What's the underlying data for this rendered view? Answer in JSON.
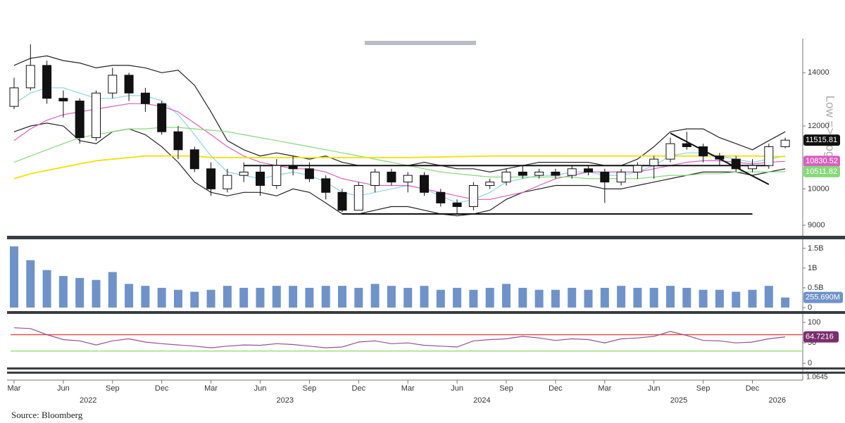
{
  "source": "Source: Bloomberg",
  "chart_data": [
    {
      "type": "candlestick",
      "log": true,
      "axis_note": "Low => Log",
      "x": [
        "2022-03",
        "2022-04",
        "2022-05",
        "2022-06",
        "2022-07",
        "2022-08",
        "2022-09",
        "2022-10",
        "2022-11",
        "2022-12",
        "2023-01",
        "2023-02",
        "2023-03",
        "2023-04",
        "2023-05",
        "2023-06",
        "2023-07",
        "2023-08",
        "2023-09",
        "2023-10",
        "2023-11",
        "2023-12",
        "2024-01",
        "2024-02",
        "2024-03",
        "2024-04",
        "2024-05",
        "2024-06",
        "2024-07",
        "2024-08",
        "2024-09",
        "2024-10",
        "2024-11",
        "2024-12",
        "2025-01",
        "2025-02",
        "2025-03",
        "2025-04",
        "2025-05",
        "2025-06",
        "2025-07",
        "2025-08",
        "2025-09",
        "2025-10",
        "2025-11",
        "2025-12",
        "2026-01",
        "2026-02"
      ],
      "open": [
        12700,
        13400,
        14300,
        13000,
        12900,
        11600,
        13200,
        13900,
        13200,
        12800,
        11800,
        11200,
        10600,
        10000,
        10400,
        10500,
        10100,
        10700,
        10600,
        10300,
        9900,
        9400,
        10100,
        10500,
        10200,
        10400,
        9900,
        9600,
        9500,
        10100,
        10200,
        10500,
        10400,
        10500,
        10400,
        10600,
        10500,
        10200,
        10500,
        10700,
        10900,
        11400,
        11300,
        11000,
        10900,
        10600,
        10700,
        11300
      ],
      "high": [
        13800,
        15200,
        14500,
        13300,
        13000,
        13300,
        14200,
        14000,
        13400,
        12900,
        12000,
        11300,
        10800,
        10600,
        10800,
        10700,
        10900,
        11000,
        10800,
        10400,
        10000,
        10200,
        10600,
        10600,
        10500,
        10500,
        10000,
        9700,
        10200,
        10300,
        10600,
        10700,
        10600,
        10600,
        10700,
        10700,
        10600,
        10600,
        10800,
        11000,
        11600,
        11800,
        11400,
        11100,
        11000,
        10900,
        11400,
        11600
      ],
      "low": [
        12600,
        13300,
        12800,
        12300,
        11400,
        11500,
        13000,
        12900,
        12500,
        11700,
        10900,
        10500,
        9800,
        9900,
        10200,
        9800,
        10000,
        10400,
        10200,
        9700,
        9350,
        9400,
        9900,
        10100,
        9900,
        9800,
        9500,
        9300,
        9400,
        10000,
        10100,
        10300,
        10300,
        10300,
        10300,
        10400,
        9600,
        10100,
        10300,
        10300,
        10800,
        11200,
        10800,
        10700,
        10500,
        10500,
        10600,
        11250
      ],
      "close": [
        13400,
        14300,
        13000,
        12900,
        11600,
        13200,
        13900,
        13200,
        12800,
        11800,
        11200,
        10600,
        10000,
        10400,
        10500,
        10100,
        10700,
        10600,
        10300,
        9900,
        9400,
        10100,
        10500,
        10200,
        10400,
        9900,
        9600,
        9500,
        10100,
        10200,
        10500,
        10400,
        10500,
        10400,
        10600,
        10500,
        10200,
        10500,
        10700,
        10900,
        11400,
        11300,
        11000,
        10900,
        10600,
        10700,
        11300,
        11515.81
      ],
      "up_color": "#ffffff",
      "down_color": "#111111",
      "overlays": [
        {
          "color": "#222222",
          "values": [
            14300,
            14600,
            14700,
            14500,
            14400,
            14200,
            14300,
            14300,
            14200,
            14000,
            14100,
            13500,
            12500,
            11500,
            11200,
            11000,
            11100,
            11000,
            10900,
            11000,
            10800,
            10700,
            10700,
            10700,
            10700,
            10800,
            10700,
            10600,
            10600,
            10500,
            10600,
            10700,
            10800,
            10800,
            10800,
            10800,
            10700,
            10700,
            10900,
            11300,
            11800,
            11900,
            11900,
            11600,
            11400,
            11200,
            11500,
            11800
          ]
        },
        {
          "color": "#222222",
          "values": [
            11800,
            12000,
            12100,
            12000,
            11500,
            11400,
            11800,
            11900,
            11700,
            11300,
            10800,
            10200,
            9900,
            9800,
            9900,
            9900,
            9800,
            10000,
            9900,
            9600,
            9300,
            9300,
            9400,
            9500,
            9500,
            9400,
            9300,
            9250,
            9300,
            9400,
            9700,
            9900,
            10000,
            10100,
            10100,
            10100,
            10000,
            10000,
            10100,
            10200,
            10300,
            10400,
            10500,
            10500,
            10500,
            10400,
            10500,
            10600
          ]
        },
        {
          "color": "#8fd3e8",
          "values": [
            12800,
            13200,
            13400,
            13400,
            13200,
            13000,
            13000,
            13100,
            13100,
            12900,
            12400,
            11700,
            11000,
            10500,
            10400,
            10300,
            10400,
            10500,
            10400,
            10200,
            9900,
            9800,
            9900,
            10000,
            10100,
            10000,
            9800,
            9600,
            9700,
            9900,
            10200,
            10300,
            10400,
            10400,
            10500,
            10500,
            10400,
            10400,
            10500,
            10700,
            11000,
            11100,
            11100,
            11000,
            10900,
            10800,
            10900,
            11000
          ]
        },
        {
          "color": "#d95fc1",
          "values": [
            11500,
            11900,
            12200,
            12400,
            12500,
            12600,
            12700,
            12800,
            12800,
            12700,
            12500,
            12100,
            11700,
            11300,
            11000,
            10800,
            10700,
            10600,
            10600,
            10500,
            10300,
            10200,
            10100,
            10100,
            10100,
            10000,
            9900,
            9800,
            9700,
            9700,
            9800,
            9900,
            10100,
            10300,
            10400,
            10500,
            10500,
            10500,
            10500,
            10600,
            10700,
            10800,
            10850,
            10850,
            10800,
            10750,
            10800,
            10830.52
          ],
          "tag": true
        },
        {
          "color": "#86d97a",
          "values": [
            10800,
            11000,
            11200,
            11400,
            11600,
            11700,
            11800,
            11900,
            11900,
            11950,
            11950,
            11900,
            11850,
            11800,
            11700,
            11600,
            11500,
            11400,
            11300,
            11200,
            11100,
            11000,
            10900,
            10800,
            10700,
            10600,
            10500,
            10450,
            10400,
            10350,
            10350,
            10350,
            10350,
            10350,
            10350,
            10300,
            10300,
            10300,
            10300,
            10350,
            10400,
            10400,
            10450,
            10450,
            10500,
            10500,
            10500,
            10511.82
          ],
          "tag": true
        },
        {
          "color": "#f2e21c",
          "values": [
            10300,
            10450,
            10550,
            10650,
            10750,
            10850,
            10900,
            10950,
            11000,
            11000,
            11000,
            11000,
            10950,
            10950,
            10950,
            10950,
            10950,
            10950,
            10950,
            10950,
            10950,
            10950,
            10950,
            10950,
            10950,
            10960,
            10970,
            10980,
            10990,
            11000,
            11000,
            11000,
            11000,
            11000,
            11000,
            11000,
            11000,
            11000,
            11000,
            11000,
            11000,
            11000,
            11000,
            11000,
            11000,
            11000,
            10990,
            10980
          ]
        }
      ],
      "trendlines": [
        {
          "start": "2023-05",
          "end": "2026-01",
          "values": [
            10700,
            10700
          ]
        },
        {
          "start": "2023-11",
          "end": "2025-12",
          "values": [
            9300,
            9300
          ]
        },
        {
          "start": "2025-07",
          "end": "2026-01",
          "values": [
            11750,
            10130
          ]
        }
      ],
      "ylim": [
        8730,
        15450
      ],
      "yticks": [
        9000,
        10000,
        12000,
        14000
      ],
      "xticks": [
        {
          "value": "2022-03",
          "label": "Mar"
        },
        {
          "value": "2022-06",
          "label": "Jun"
        },
        {
          "value": "2022-09",
          "label": "Sep"
        },
        {
          "value": "2022-12",
          "label": "Dec"
        },
        {
          "value": "2023-03",
          "label": "Mar"
        },
        {
          "value": "2023-06",
          "label": "Jun"
        },
        {
          "value": "2023-09",
          "label": "Sep"
        },
        {
          "value": "2023-12",
          "label": "Dec"
        },
        {
          "value": "2024-03",
          "label": "Mar"
        },
        {
          "value": "2024-06",
          "label": "Jun"
        },
        {
          "value": "2024-09",
          "label": "Sep"
        },
        {
          "value": "2024-12",
          "label": "Dec"
        },
        {
          "value": "2025-03",
          "label": "Mar"
        },
        {
          "value": "2025-06",
          "label": "Jun"
        },
        {
          "value": "2025-09",
          "label": "Sep"
        },
        {
          "value": "2025-12",
          "label": "Dec"
        }
      ],
      "year_ticks": [
        {
          "value": "2022-07",
          "label": "2022"
        },
        {
          "value": "2023-07",
          "label": "2023"
        },
        {
          "value": "2024-07",
          "label": "2024"
        },
        {
          "value": "2025-07",
          "label": "2025"
        },
        {
          "value": "2026-01",
          "label": "2026"
        }
      ]
    },
    {
      "type": "bar",
      "color": "#6f93c9",
      "values": [
        1.55,
        1.2,
        0.95,
        0.8,
        0.75,
        0.7,
        0.9,
        0.6,
        0.55,
        0.5,
        0.45,
        0.4,
        0.45,
        0.55,
        0.5,
        0.5,
        0.55,
        0.55,
        0.5,
        0.55,
        0.55,
        0.5,
        0.6,
        0.55,
        0.5,
        0.55,
        0.45,
        0.5,
        0.45,
        0.5,
        0.6,
        0.5,
        0.45,
        0.45,
        0.5,
        0.45,
        0.5,
        0.55,
        0.5,
        0.5,
        0.55,
        0.5,
        0.45,
        0.45,
        0.4,
        0.45,
        0.55,
        0.25569
      ],
      "value_labels": [
        null,
        null,
        null,
        null,
        null,
        null,
        null,
        null,
        null,
        null,
        null,
        null,
        null,
        null,
        null,
        null,
        null,
        null,
        null,
        null,
        null,
        null,
        null,
        null,
        null,
        null,
        null,
        null,
        null,
        null,
        null,
        null,
        null,
        null,
        null,
        null,
        null,
        null,
        null,
        null,
        null,
        null,
        null,
        null,
        null,
        null,
        null,
        "255.690M"
      ],
      "ylim": [
        0,
        1.64
      ],
      "yticks": [
        0,
        {
          "value": 0.5,
          "label": "0.5B"
        },
        {
          "value": 1,
          "label": "1B"
        },
        {
          "value": 1.5,
          "label": "1.5B"
        }
      ]
    },
    {
      "type": "line",
      "color": "#9a4f8f",
      "values": [
        87,
        85,
        70,
        58,
        55,
        45,
        55,
        60,
        52,
        48,
        45,
        42,
        38,
        42,
        45,
        44,
        48,
        46,
        42,
        38,
        40,
        52,
        55,
        48,
        50,
        44,
        42,
        40,
        55,
        58,
        60,
        66,
        62,
        56,
        60,
        58,
        50,
        60,
        62,
        66,
        78,
        68,
        56,
        55,
        50,
        52,
        60,
        64.7216
      ],
      "reference_lines": [
        {
          "value": 70,
          "color": "#d9534f"
        },
        {
          "value": 30,
          "color": "#9be07e"
        }
      ],
      "ylim": [
        -10,
        114
      ],
      "yticks": [
        0,
        50,
        100
      ],
      "extra_value": 1.0645
    }
  ]
}
